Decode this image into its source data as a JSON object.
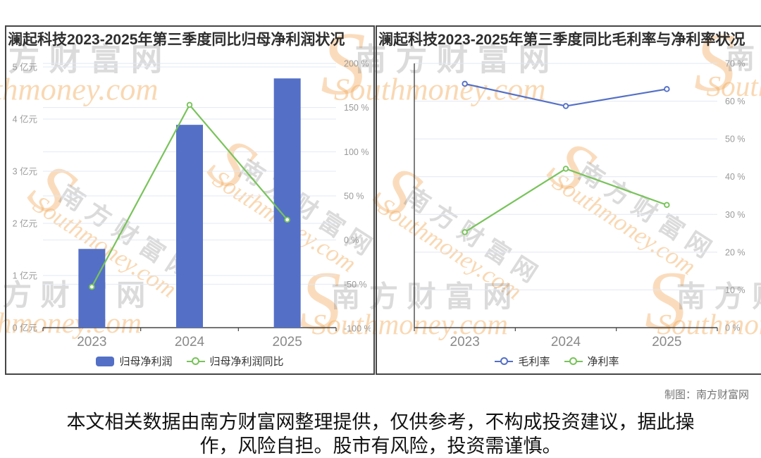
{
  "watermark": {
    "cn": "南方财富网",
    "en": "Southmoney.com",
    "swoosh": "S"
  },
  "credit": "制图：南方财富网",
  "disclaimer": {
    "line1": "本文相关数据由南方财富网整理提供，仅供参考，不构成投资建议，据此操",
    "line2": "作，风险自担。股市有风险，投资需谨慎。"
  },
  "chart_data": [
    {
      "type": "bar",
      "title": "澜起科技2023-2025年第三季度同比归母净利润状况",
      "categories": [
        "2023",
        "2024",
        "2025"
      ],
      "series": [
        {
          "name": "归母净利润",
          "type": "bar",
          "axis": "left",
          "unit": "亿元",
          "color": "#5470c6",
          "values": [
            1.51,
            3.89,
            4.78
          ]
        },
        {
          "name": "归母净利润同比",
          "type": "line",
          "axis": "right",
          "unit": "%",
          "color": "#79c35b",
          "values": [
            -53,
            153,
            23
          ]
        }
      ],
      "y_axis_left": {
        "min": 0,
        "max": 5,
        "labels": [
          "5 亿元",
          "4 亿元",
          "3 亿元",
          "2 亿元",
          "1 亿元",
          "0 亿元"
        ]
      },
      "y_axis_right": {
        "min": -100,
        "max": 200,
        "labels": [
          "200 %",
          "150 %",
          "100 %",
          "50 %",
          "0 %",
          "-50 %",
          "-100 %"
        ]
      },
      "legend_position": "bottom",
      "grid": true
    },
    {
      "type": "line",
      "title": "澜起科技2023-2025年第三季度同比毛利率与净利率状况",
      "categories": [
        "2023",
        "2024",
        "2025"
      ],
      "series": [
        {
          "name": "毛利率",
          "type": "line",
          "axis": "right",
          "unit": "%",
          "color": "#5470c6",
          "values": [
            64.6,
            58.7,
            63.2
          ]
        },
        {
          "name": "净利率",
          "type": "line",
          "axis": "right",
          "unit": "%",
          "color": "#79c35b",
          "values": [
            25.3,
            42.1,
            32.5
          ]
        }
      ],
      "y_axis_right": {
        "min": 0,
        "max": 70,
        "labels": [
          "70 %",
          "60 %",
          "50 %",
          "40 %",
          "30 %",
          "20 %",
          "10 %",
          "0 %"
        ]
      },
      "legend_position": "bottom",
      "grid": true
    }
  ]
}
